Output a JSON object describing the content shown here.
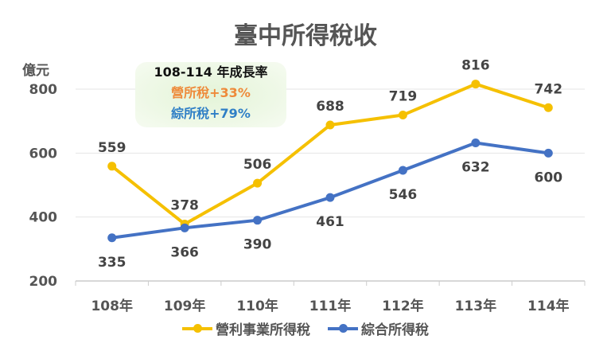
{
  "chart_data": {
    "type": "line",
    "title": "臺中所得稅收",
    "ylabel": "億元",
    "categories": [
      "108年",
      "109年",
      "110年",
      "111年",
      "112年",
      "113年",
      "114年"
    ],
    "ylim": [
      200,
      800
    ],
    "yticks": [
      200,
      400,
      600,
      800
    ],
    "grid": true,
    "legend_position": "bottom",
    "series": [
      {
        "name": "營利事業所得稅",
        "color": "#f5c000",
        "values": [
          559,
          378,
          506,
          688,
          719,
          816,
          742
        ]
      },
      {
        "name": "綜合所得稅",
        "color": "#4472c4",
        "values": [
          335,
          366,
          390,
          461,
          546,
          632,
          600
        ]
      }
    ],
    "annotation": {
      "title": "108-114 年成長率",
      "line1": "營所稅+33%",
      "line2": "綜所稅+79%"
    }
  }
}
